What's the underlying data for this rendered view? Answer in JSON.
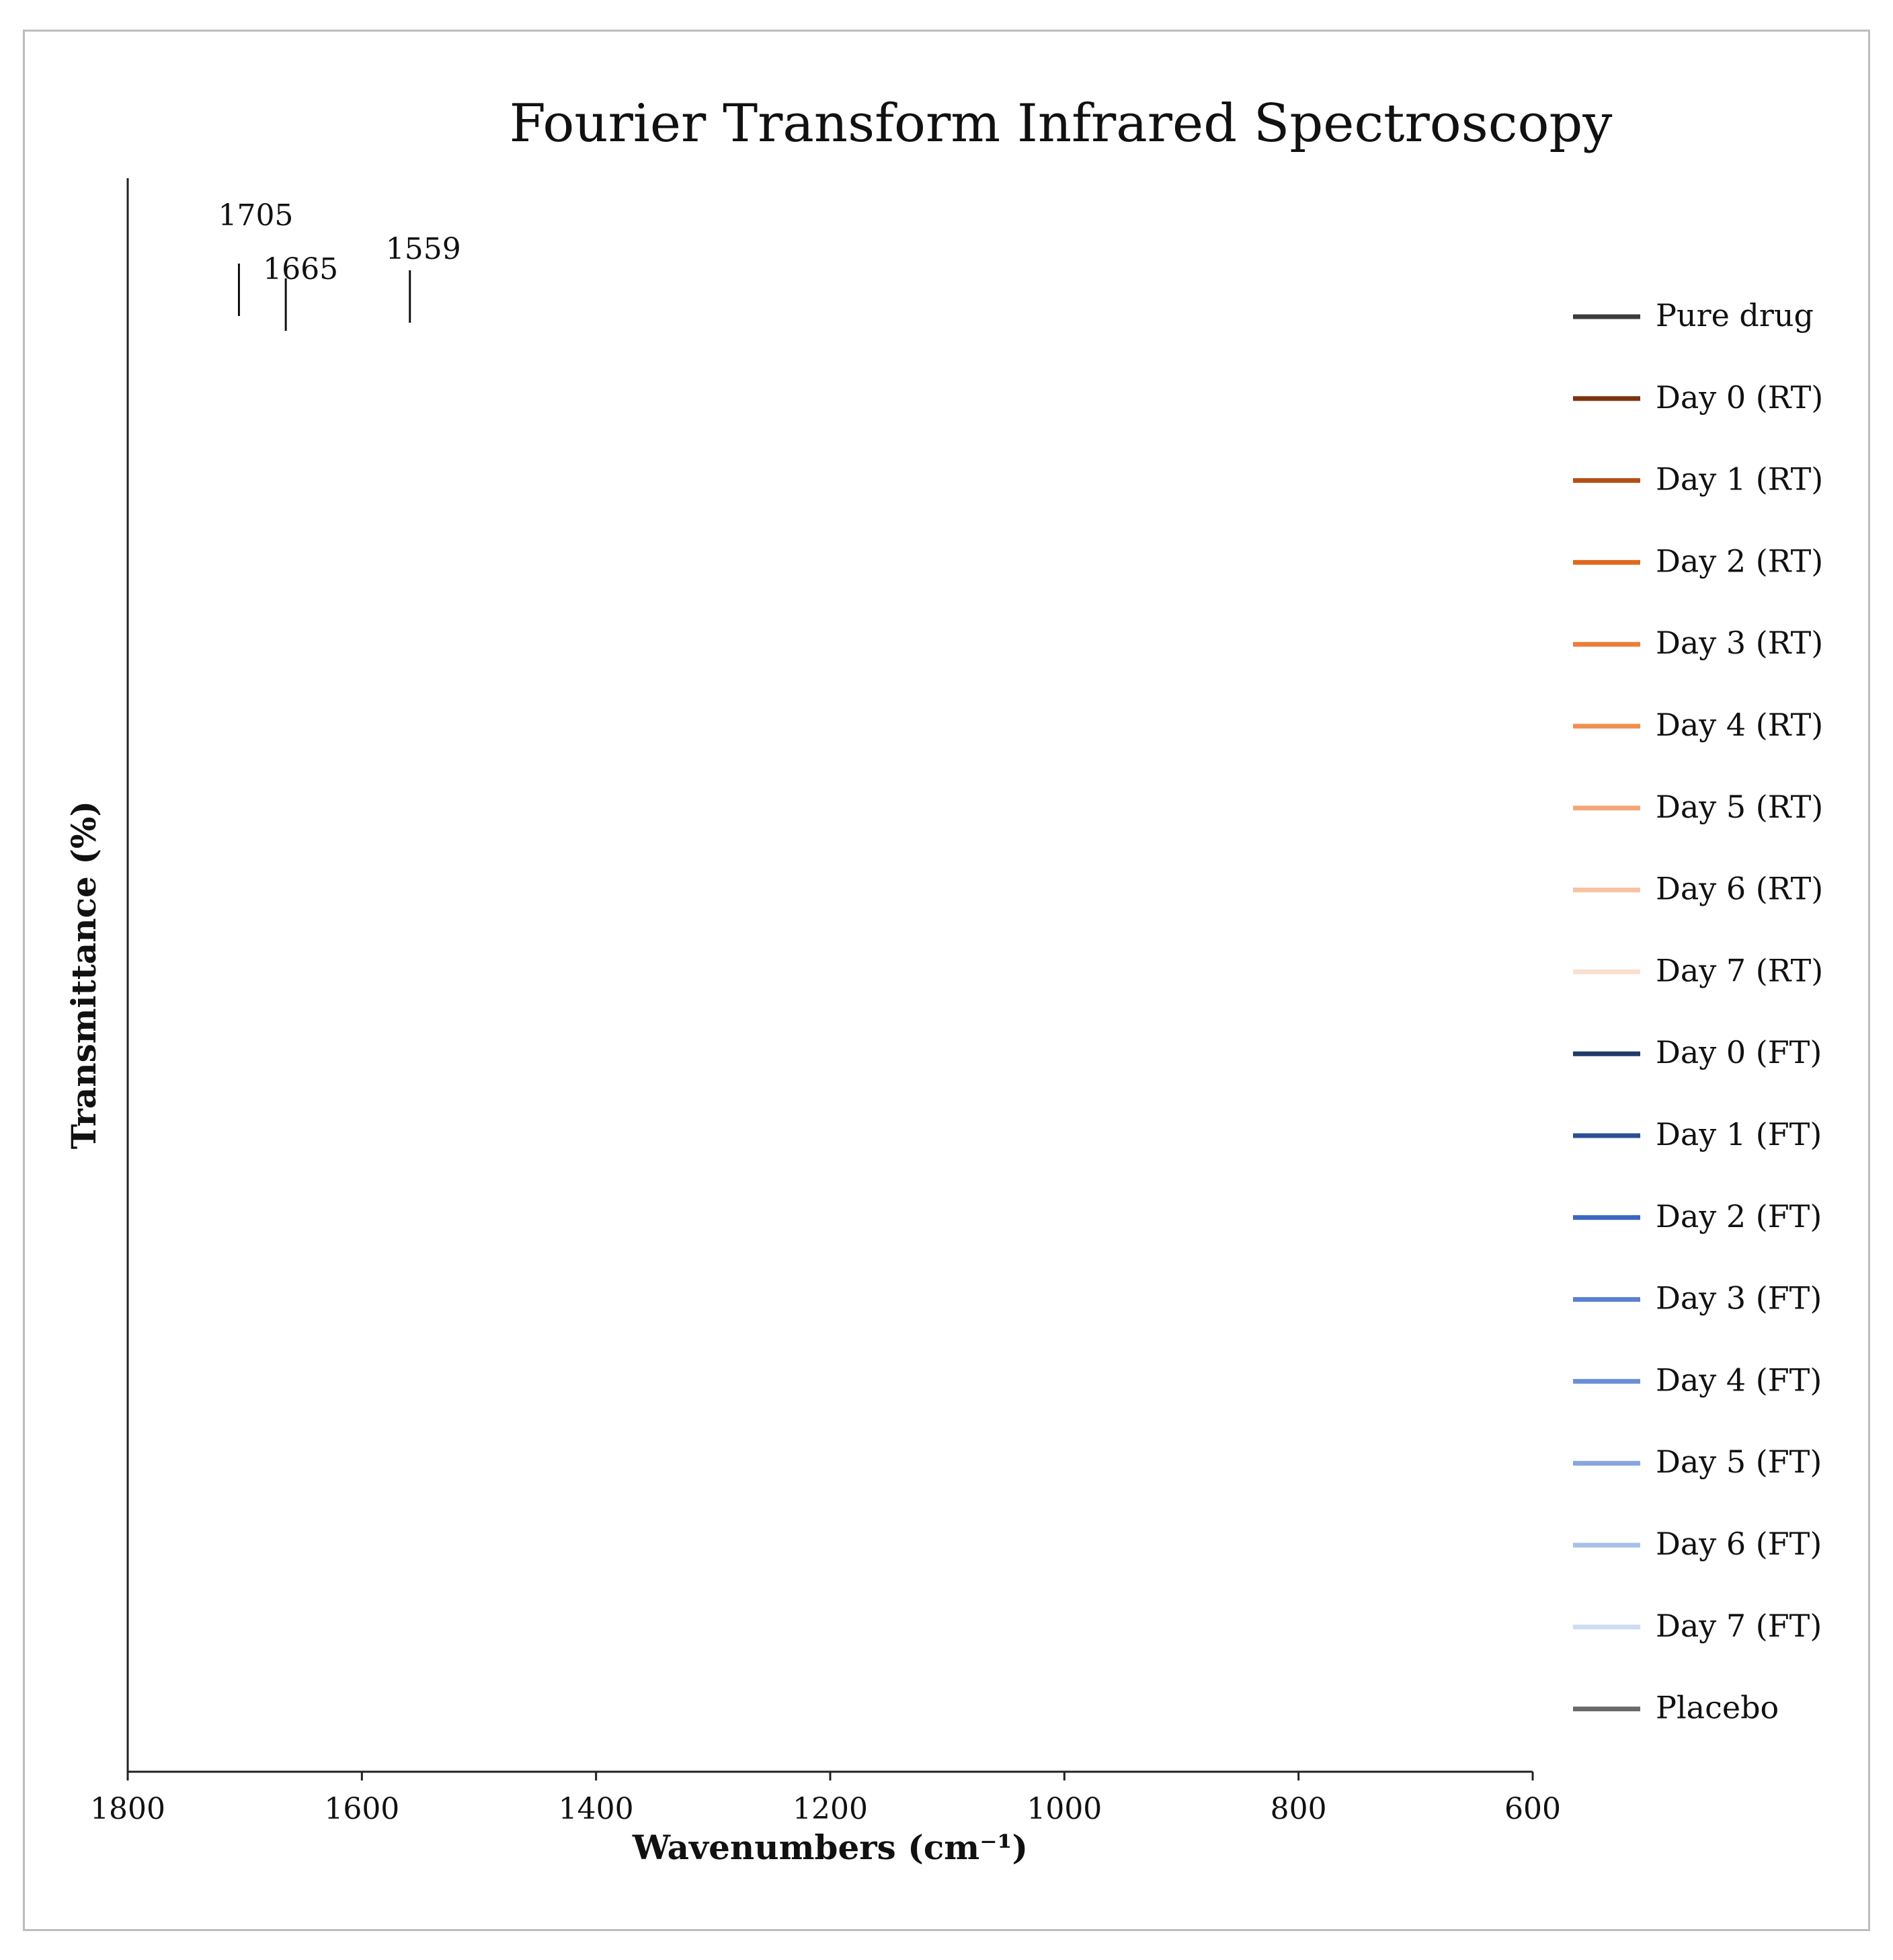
{
  "chart_data": {
    "type": "line",
    "title": "Fourier Transform Infrared Spectroscopy",
    "xlabel": "Wavenumbers (cm⁻¹)",
    "ylabel": "Transmittance (%)",
    "xlim": [
      1800,
      600
    ],
    "x_ticks": [
      "1800",
      "1600",
      "1400",
      "1200",
      "1000",
      "800",
      "600"
    ],
    "annotations": [
      {
        "label": "1705",
        "x": 1705
      },
      {
        "label": "1665",
        "x": 1665
      },
      {
        "label": "1559",
        "x": 1559
      }
    ],
    "legend_position": "right",
    "series": [
      {
        "name": "Pure drug",
        "color": "#3c3c3c",
        "profile": "drug"
      },
      {
        "name": "Day 0 (RT)",
        "color": "#7b3410",
        "profile": "form"
      },
      {
        "name": "Day 1 (RT)",
        "color": "#b34f16",
        "profile": "form"
      },
      {
        "name": "Day 2 (RT)",
        "color": "#e0691e",
        "profile": "form"
      },
      {
        "name": "Day 3 (RT)",
        "color": "#ec7d38",
        "profile": "form"
      },
      {
        "name": "Day 4 (RT)",
        "color": "#f08f4e",
        "profile": "form"
      },
      {
        "name": "Day 5 (RT)",
        "color": "#f3a679",
        "profile": "form"
      },
      {
        "name": "Day 6 (RT)",
        "color": "#f6c2a4",
        "profile": "form"
      },
      {
        "name": "Day 7 (RT)",
        "color": "#fadfcf",
        "profile": "form"
      },
      {
        "name": "Day 0 (FT)",
        "color": "#1f3a6b",
        "profile": "form"
      },
      {
        "name": "Day 1 (FT)",
        "color": "#2a4f93",
        "profile": "form"
      },
      {
        "name": "Day 2 (FT)",
        "color": "#3b67c2",
        "profile": "form"
      },
      {
        "name": "Day 3 (FT)",
        "color": "#5a80cf",
        "profile": "form"
      },
      {
        "name": "Day 4 (FT)",
        "color": "#6a8fd6",
        "profile": "form"
      },
      {
        "name": "Day 5 (FT)",
        "color": "#86a4de",
        "profile": "form"
      },
      {
        "name": "Day 6 (FT)",
        "color": "#a8bfe8",
        "profile": "form"
      },
      {
        "name": "Day 7 (FT)",
        "color": "#cddbf3",
        "profile": "form"
      },
      {
        "name": "Placebo",
        "color": "#6a6a6a",
        "profile": "placebo"
      }
    ]
  }
}
